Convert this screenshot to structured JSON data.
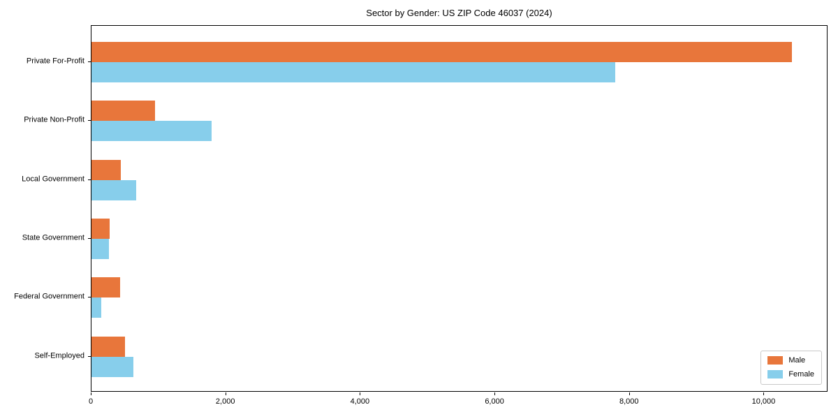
{
  "chart_data": {
    "type": "bar",
    "orientation": "horizontal",
    "title": "Sector by Gender: US ZIP Code 46037 (2024)",
    "categories": [
      "Private For-Profit",
      "Private Non-Profit",
      "Local Government",
      "State Government",
      "Federal Government",
      "Self-Employed"
    ],
    "series": [
      {
        "name": "Male",
        "color": "#e8763b",
        "values": [
          10430,
          950,
          440,
          270,
          430,
          500
        ]
      },
      {
        "name": "Female",
        "color": "#87ceeb",
        "values": [
          7800,
          1790,
          665,
          265,
          145,
          625
        ]
      }
    ],
    "xlabel": "",
    "ylabel": "",
    "xlim": [
      0,
      10950
    ],
    "x_ticks": [
      0,
      2000,
      4000,
      6000,
      8000,
      10000
    ],
    "x_tick_labels": [
      "0",
      "2,000",
      "4,000",
      "6,000",
      "8,000",
      "10,000"
    ],
    "grid": false,
    "legend": {
      "position": "lower right",
      "entries": [
        "Male",
        "Female"
      ]
    }
  }
}
